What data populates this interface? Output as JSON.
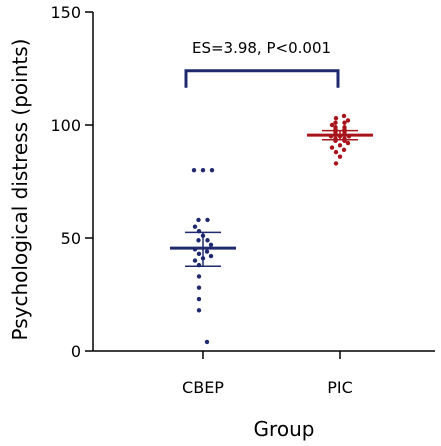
{
  "chart_data": {
    "type": "scatter",
    "subtype": "dot-plot with mean and error bars",
    "xlabel": "Group",
    "ylabel": "Psychological distress (points)",
    "ylim": [
      0,
      150
    ],
    "yticks": [
      0,
      50,
      100,
      150
    ],
    "categories": [
      "CBEP",
      "PIC"
    ],
    "grid": false,
    "series": [
      {
        "category": "CBEP",
        "color": "#1f2a6e",
        "mean": 45.5,
        "error_low": 37.5,
        "error_high": 52.5,
        "points": [
          80,
          80,
          80,
          58,
          58,
          55,
          53,
          51,
          49,
          49,
          47,
          45,
          44,
          43,
          42,
          41,
          40,
          38,
          33,
          28,
          23,
          18,
          4
        ]
      },
      {
        "category": "PIC",
        "color": "#a8141b",
        "mean": 95.5,
        "error_low": 93.5,
        "error_high": 97.5,
        "points": [
          104,
          103,
          102,
          101,
          101,
          100,
          99,
          99,
          98,
          98,
          97,
          97,
          96,
          96,
          95,
          95,
          95,
          94,
          94,
          93,
          93,
          92,
          91,
          90,
          89,
          88,
          86,
          83
        ]
      }
    ],
    "annotation": {
      "text": "ES=3.98, P<0.001",
      "bracket_color": "#1f2a6e",
      "bracket_y": 120
    }
  }
}
